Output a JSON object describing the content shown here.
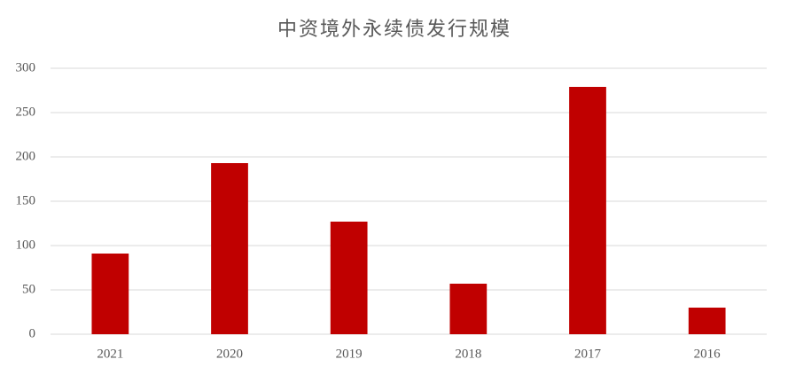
{
  "chart_data": {
    "type": "bar",
    "title": "中资境外永续债发行规模",
    "categories": [
      "2021",
      "2020",
      "2019",
      "2018",
      "2017",
      "2016"
    ],
    "values": [
      91,
      193,
      127,
      57,
      279,
      30
    ],
    "color": "#c00000",
    "ylim": [
      0,
      300
    ],
    "yticks": [
      0,
      50,
      100,
      150,
      200,
      250,
      300
    ],
    "grid": true
  }
}
